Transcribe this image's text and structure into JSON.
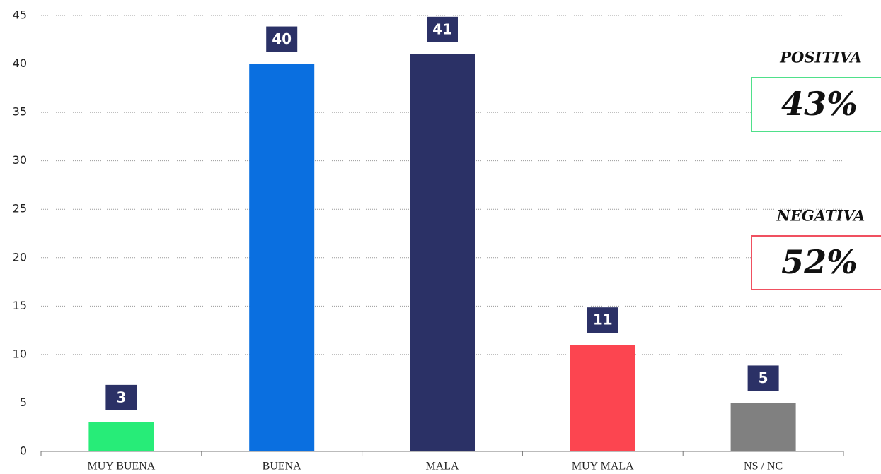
{
  "chart_data": {
    "type": "bar",
    "categories": [
      "MUY BUENA",
      "BUENA",
      "MALA",
      "MUY MALA",
      "NS / NC"
    ],
    "values": [
      3,
      40,
      41,
      11,
      5
    ],
    "colors": [
      "#27ec78",
      "#0a6fe0",
      "#2b3166",
      "#fc4550",
      "#808080"
    ],
    "label_color": "#2b3166",
    "ylim": [
      0,
      45
    ],
    "yticks": [
      0,
      5,
      10,
      15,
      20,
      25,
      30,
      35,
      40,
      45
    ],
    "grid": true,
    "annotations": [
      {
        "title": "POSITIVA",
        "text": "43%",
        "color": "#4fe08a"
      },
      {
        "title": "NEGATIVA",
        "text": "52%",
        "color": "#f05060"
      }
    ]
  }
}
